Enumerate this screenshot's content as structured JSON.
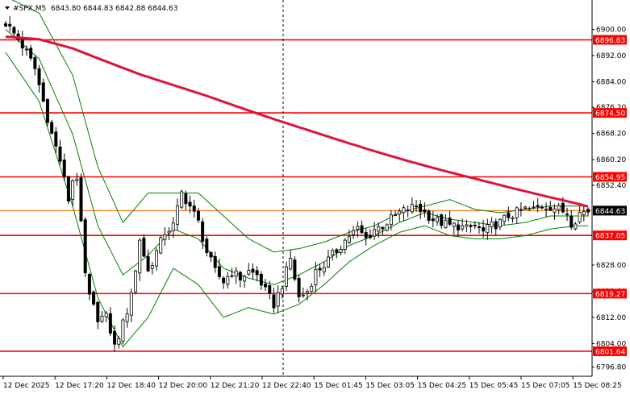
{
  "header": {
    "symbol": "#SPX,M5",
    "ohlc": "6843.80 6844.83 6842.88 6844.63"
  },
  "chart_data": {
    "type": "candlestick",
    "symbol": "#SPX",
    "timeframe": "M5",
    "ylim": [
      6794,
      6909
    ],
    "y_ticks": [
      "6900.00",
      "6892.00",
      "6884.00",
      "6876.20",
      "6868.20",
      "6860.20",
      "6852.40",
      "6828.00",
      "6820.00",
      "6812.00",
      "6804.00",
      "6796.80"
    ],
    "x_ticks": [
      "12 Dec 2025",
      "12 Dec 17:20",
      "12 Dec 18:40",
      "12 Dec 20:00",
      "12 Dec 21:20",
      "12 Dec 22:40",
      "15 Dec 01:45",
      "15 Dec 03:05",
      "15 Dec 04:25",
      "15 Dec 05:45",
      "15 Dec 07:05",
      "15 Dec 08:25"
    ],
    "levels": [
      {
        "value": 6896.83,
        "label": "6896.83"
      },
      {
        "value": 6874.5,
        "label": "6874.50"
      },
      {
        "value": 6854.95,
        "label": "6854.95"
      },
      {
        "value": 6837.05,
        "label": "6837.05"
      },
      {
        "value": 6819.27,
        "label": "6819.27"
      },
      {
        "value": 6801.64,
        "label": "6801.64"
      }
    ],
    "current_price": {
      "value": 6844.63,
      "label": "6844.63"
    },
    "moving_average": [
      {
        "i": 0,
        "v": 6897.8
      },
      {
        "i": 8,
        "v": 6897.0
      },
      {
        "i": 16,
        "v": 6894.2
      },
      {
        "i": 24,
        "v": 6890.2
      },
      {
        "i": 32,
        "v": 6886.3
      },
      {
        "i": 40,
        "v": 6883.0
      },
      {
        "i": 48,
        "v": 6879.7
      },
      {
        "i": 56,
        "v": 6876.1
      },
      {
        "i": 64,
        "v": 6872.6
      },
      {
        "i": 72,
        "v": 6869.3
      },
      {
        "i": 80,
        "v": 6866.0
      },
      {
        "i": 88,
        "v": 6862.8
      },
      {
        "i": 96,
        "v": 6859.8
      },
      {
        "i": 104,
        "v": 6857.0
      },
      {
        "i": 112,
        "v": 6854.4
      },
      {
        "i": 120,
        "v": 6851.8
      },
      {
        "i": 128,
        "v": 6849.3
      },
      {
        "i": 136,
        "v": 6846.9
      },
      {
        "i": 139,
        "v": 6845.9
      }
    ],
    "bollinger": {
      "upper": [
        {
          "i": 0,
          "v": 6910
        },
        {
          "i": 8,
          "v": 6905
        },
        {
          "i": 16,
          "v": 6886
        },
        {
          "i": 22,
          "v": 6858
        },
        {
          "i": 28,
          "v": 6841
        },
        {
          "i": 34,
          "v": 6850
        },
        {
          "i": 40,
          "v": 6850
        },
        {
          "i": 46,
          "v": 6850
        },
        {
          "i": 52,
          "v": 6843
        },
        {
          "i": 58,
          "v": 6836
        },
        {
          "i": 64,
          "v": 6832
        },
        {
          "i": 70,
          "v": 6833
        },
        {
          "i": 76,
          "v": 6835
        },
        {
          "i": 82,
          "v": 6838
        },
        {
          "i": 88,
          "v": 6840
        },
        {
          "i": 94,
          "v": 6844
        },
        {
          "i": 100,
          "v": 6846
        },
        {
          "i": 106,
          "v": 6848
        },
        {
          "i": 112,
          "v": 6845
        },
        {
          "i": 118,
          "v": 6844
        },
        {
          "i": 124,
          "v": 6845
        },
        {
          "i": 130,
          "v": 6846
        },
        {
          "i": 136,
          "v": 6846
        },
        {
          "i": 139,
          "v": 6846
        }
      ],
      "middle": [
        {
          "i": 0,
          "v": 6900
        },
        {
          "i": 8,
          "v": 6891
        },
        {
          "i": 16,
          "v": 6868
        },
        {
          "i": 22,
          "v": 6840
        },
        {
          "i": 28,
          "v": 6825
        },
        {
          "i": 34,
          "v": 6831
        },
        {
          "i": 40,
          "v": 6839
        },
        {
          "i": 46,
          "v": 6836
        },
        {
          "i": 52,
          "v": 6827
        },
        {
          "i": 58,
          "v": 6824
        },
        {
          "i": 64,
          "v": 6822
        },
        {
          "i": 70,
          "v": 6825
        },
        {
          "i": 76,
          "v": 6829
        },
        {
          "i": 82,
          "v": 6834
        },
        {
          "i": 88,
          "v": 6837
        },
        {
          "i": 94,
          "v": 6841
        },
        {
          "i": 100,
          "v": 6844
        },
        {
          "i": 106,
          "v": 6842
        },
        {
          "i": 112,
          "v": 6841
        },
        {
          "i": 118,
          "v": 6840
        },
        {
          "i": 124,
          "v": 6841
        },
        {
          "i": 130,
          "v": 6843
        },
        {
          "i": 136,
          "v": 6843
        },
        {
          "i": 139,
          "v": 6843
        }
      ],
      "lower": [
        {
          "i": 0,
          "v": 6893
        },
        {
          "i": 8,
          "v": 6878
        },
        {
          "i": 16,
          "v": 6846
        },
        {
          "i": 22,
          "v": 6818
        },
        {
          "i": 28,
          "v": 6803
        },
        {
          "i": 34,
          "v": 6812
        },
        {
          "i": 40,
          "v": 6827
        },
        {
          "i": 46,
          "v": 6822
        },
        {
          "i": 52,
          "v": 6812
        },
        {
          "i": 58,
          "v": 6815
        },
        {
          "i": 64,
          "v": 6813
        },
        {
          "i": 70,
          "v": 6816
        },
        {
          "i": 76,
          "v": 6822
        },
        {
          "i": 82,
          "v": 6829
        },
        {
          "i": 88,
          "v": 6834
        },
        {
          "i": 94,
          "v": 6838
        },
        {
          "i": 100,
          "v": 6840
        },
        {
          "i": 106,
          "v": 6837
        },
        {
          "i": 112,
          "v": 6836
        },
        {
          "i": 118,
          "v": 6836
        },
        {
          "i": 124,
          "v": 6837
        },
        {
          "i": 130,
          "v": 6839
        },
        {
          "i": 136,
          "v": 6840
        },
        {
          "i": 139,
          "v": 6840
        }
      ]
    },
    "price_path": [
      {
        "i": 0,
        "v": 6902
      },
      {
        "i": 3,
        "v": 6897
      },
      {
        "i": 5,
        "v": 6893
      },
      {
        "i": 7,
        "v": 6888
      },
      {
        "i": 9,
        "v": 6878
      },
      {
        "i": 11,
        "v": 6868
      },
      {
        "i": 13,
        "v": 6860
      },
      {
        "i": 15,
        "v": 6848
      },
      {
        "i": 16,
        "v": 6854
      },
      {
        "i": 17,
        "v": 6855
      },
      {
        "i": 18,
        "v": 6840
      },
      {
        "i": 19,
        "v": 6825
      },
      {
        "i": 20,
        "v": 6818
      },
      {
        "i": 22,
        "v": 6812
      },
      {
        "i": 24,
        "v": 6812
      },
      {
        "i": 25,
        "v": 6808
      },
      {
        "i": 26,
        "v": 6803
      },
      {
        "i": 28,
        "v": 6810
      },
      {
        "i": 29,
        "v": 6814
      },
      {
        "i": 31,
        "v": 6826
      },
      {
        "i": 32,
        "v": 6836
      },
      {
        "i": 34,
        "v": 6826
      },
      {
        "i": 36,
        "v": 6832
      },
      {
        "i": 38,
        "v": 6838
      },
      {
        "i": 40,
        "v": 6840
      },
      {
        "i": 42,
        "v": 6850
      },
      {
        "i": 44,
        "v": 6846
      },
      {
        "i": 46,
        "v": 6841
      },
      {
        "i": 48,
        "v": 6832
      },
      {
        "i": 50,
        "v": 6826
      },
      {
        "i": 52,
        "v": 6823
      },
      {
        "i": 54,
        "v": 6826
      },
      {
        "i": 56,
        "v": 6824
      },
      {
        "i": 58,
        "v": 6826
      },
      {
        "i": 60,
        "v": 6825
      },
      {
        "i": 62,
        "v": 6820
      },
      {
        "i": 64,
        "v": 6816
      },
      {
        "i": 66,
        "v": 6822
      },
      {
        "i": 68,
        "v": 6830
      },
      {
        "i": 70,
        "v": 6818
      },
      {
        "i": 72,
        "v": 6820
      },
      {
        "i": 74,
        "v": 6826
      },
      {
        "i": 76,
        "v": 6828
      },
      {
        "i": 78,
        "v": 6831
      },
      {
        "i": 80,
        "v": 6834
      },
      {
        "i": 82,
        "v": 6837
      },
      {
        "i": 84,
        "v": 6839
      },
      {
        "i": 86,
        "v": 6836
      },
      {
        "i": 88,
        "v": 6839
      },
      {
        "i": 90,
        "v": 6840
      },
      {
        "i": 92,
        "v": 6842
      },
      {
        "i": 94,
        "v": 6844
      },
      {
        "i": 96,
        "v": 6845
      },
      {
        "i": 98,
        "v": 6846
      },
      {
        "i": 100,
        "v": 6844
      },
      {
        "i": 102,
        "v": 6842
      },
      {
        "i": 104,
        "v": 6841
      },
      {
        "i": 106,
        "v": 6840
      },
      {
        "i": 108,
        "v": 6840
      },
      {
        "i": 110,
        "v": 6839
      },
      {
        "i": 112,
        "v": 6840
      },
      {
        "i": 114,
        "v": 6838
      },
      {
        "i": 116,
        "v": 6840
      },
      {
        "i": 118,
        "v": 6841
      },
      {
        "i": 120,
        "v": 6843
      },
      {
        "i": 122,
        "v": 6844
      },
      {
        "i": 124,
        "v": 6845
      },
      {
        "i": 126,
        "v": 6845
      },
      {
        "i": 128,
        "v": 6846
      },
      {
        "i": 130,
        "v": 6846
      },
      {
        "i": 132,
        "v": 6845
      },
      {
        "i": 134,
        "v": 6844
      },
      {
        "i": 135,
        "v": 6841
      },
      {
        "i": 136,
        "v": 6842
      },
      {
        "i": 137,
        "v": 6844
      },
      {
        "i": 139,
        "v": 6844.6
      }
    ],
    "candle_count": 140,
    "colors": {
      "background": "#ffffff",
      "candle": "#000000",
      "level_line": "#ff0000",
      "level_label_bg": "#ff0000",
      "moving_average": "#dc143c",
      "bollinger": "#008000",
      "current_price_line": "#ff6600",
      "current_price_label_bg": "#000000",
      "grid_separator": "#000000"
    }
  }
}
